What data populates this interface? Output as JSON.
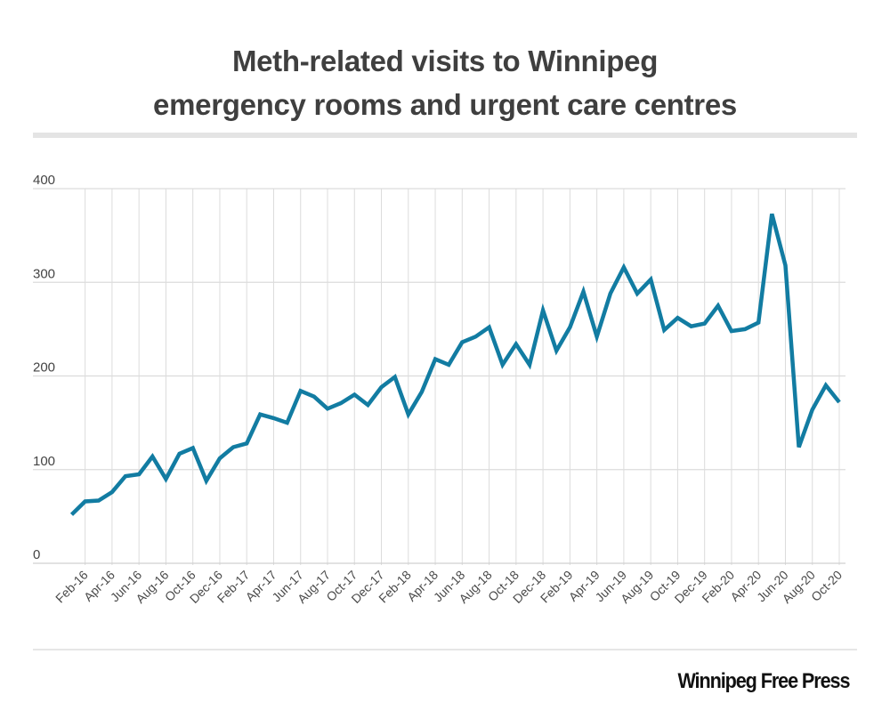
{
  "title_lines": [
    "Meth-related visits to Winnipeg",
    "emergency rooms and urgent care centres"
  ],
  "logo": "Winnipeg Free Press",
  "colors": {
    "line": "#127ca2",
    "grid": "#dcdcdc",
    "text": "#444444",
    "title": "#3f3f3f"
  },
  "chart_data": {
    "type": "line",
    "title": "Meth-related visits to Winnipeg emergency rooms and urgent care centres",
    "xlabel": "",
    "ylabel": "",
    "ylim": [
      0,
      400
    ],
    "yticks": [
      0,
      100,
      200,
      300,
      400
    ],
    "grid": true,
    "legend": "none",
    "x": [
      "Jan-16",
      "Feb-16",
      "Mar-16",
      "Apr-16",
      "May-16",
      "Jun-16",
      "Jul-16",
      "Aug-16",
      "Sep-16",
      "Oct-16",
      "Nov-16",
      "Dec-16",
      "Jan-17",
      "Feb-17",
      "Mar-17",
      "Apr-17",
      "May-17",
      "Jun-17",
      "Jul-17",
      "Aug-17",
      "Sep-17",
      "Oct-17",
      "Nov-17",
      "Dec-17",
      "Jan-18",
      "Feb-18",
      "Mar-18",
      "Apr-18",
      "May-18",
      "Jun-18",
      "Jul-18",
      "Aug-18",
      "Sep-18",
      "Oct-18",
      "Nov-18",
      "Dec-18",
      "Jan-19",
      "Feb-19",
      "Mar-19",
      "Apr-19",
      "May-19",
      "Jun-19",
      "Jul-19",
      "Aug-19",
      "Sep-19",
      "Oct-19",
      "Nov-19",
      "Dec-19",
      "Jan-20",
      "Feb-20",
      "Mar-20",
      "Apr-20",
      "May-20",
      "Jun-20",
      "Jul-20",
      "Aug-20",
      "Sep-20",
      "Oct-20"
    ],
    "xtick_labels": [
      "Feb-16",
      "Apr-16",
      "Jun-16",
      "Aug-16",
      "Oct-16",
      "Dec-16",
      "Feb-17",
      "Apr-17",
      "Jun-17",
      "Aug-17",
      "Oct-17",
      "Dec-17",
      "Feb-18",
      "Apr-18",
      "Jun-18",
      "Aug-18",
      "Oct-18",
      "Dec-18",
      "Feb-19",
      "Apr-19",
      "Jun-19",
      "Aug-19",
      "Oct-19",
      "Dec-19",
      "Feb-20",
      "Apr-20",
      "Jun-20",
      "Aug-20",
      "Oct-20"
    ],
    "series": [
      {
        "name": "Meth-related visits",
        "values": [
          52,
          66,
          67,
          76,
          93,
          95,
          114,
          90,
          117,
          123,
          88,
          112,
          124,
          128,
          159,
          155,
          150,
          184,
          178,
          165,
          171,
          180,
          169,
          188,
          199,
          159,
          183,
          218,
          212,
          236,
          242,
          252,
          212,
          234,
          212,
          270,
          227,
          252,
          290,
          242,
          288,
          316,
          288,
          303,
          249,
          262,
          253,
          256,
          275,
          248,
          250,
          257,
          373,
          318,
          124,
          164,
          190,
          172
        ]
      }
    ]
  }
}
